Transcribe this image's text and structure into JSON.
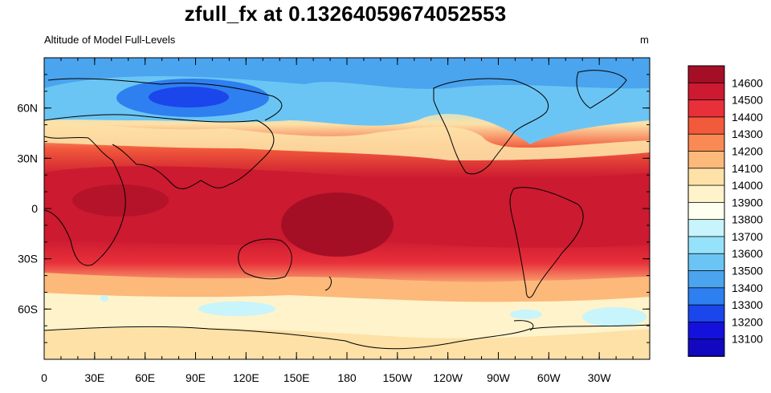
{
  "title": "zfull_fx at 0.13264059674052553",
  "subtitle": "Altitude of Model Full-Levels",
  "units": "m",
  "map": {
    "projection": "cylindrical equidistant",
    "lon_range": [
      0,
      360
    ],
    "lat_range": [
      -90,
      90
    ],
    "lon_ticks": [
      {
        "lon": 0,
        "label": "0"
      },
      {
        "lon": 30,
        "label": "30E"
      },
      {
        "lon": 60,
        "label": "60E"
      },
      {
        "lon": 90,
        "label": "90E"
      },
      {
        "lon": 120,
        "label": "120E"
      },
      {
        "lon": 150,
        "label": "150E"
      },
      {
        "lon": 180,
        "label": "180"
      },
      {
        "lon": 210,
        "label": "150W"
      },
      {
        "lon": 240,
        "label": "120W"
      },
      {
        "lon": 270,
        "label": "90W"
      },
      {
        "lon": 300,
        "label": "60W"
      },
      {
        "lon": 330,
        "label": "30W"
      }
    ],
    "lat_ticks": [
      {
        "lat": 60,
        "label": "60N"
      },
      {
        "lat": 30,
        "label": "30N"
      },
      {
        "lat": 0,
        "label": "0"
      },
      {
        "lat": -30,
        "label": "30S"
      },
      {
        "lat": -60,
        "label": "60S"
      }
    ]
  },
  "colorbar": {
    "levels": [
      "14600",
      "14500",
      "14400",
      "14300",
      "14200",
      "14100",
      "14000",
      "13900",
      "13800",
      "13700",
      "13600",
      "13500",
      "13400",
      "13300",
      "13200",
      "13100"
    ],
    "colors": [
      "#a50f26",
      "#cc1a30",
      "#e8303a",
      "#f25a3c",
      "#fa8a54",
      "#fcb97a",
      "#fde1a6",
      "#fef3cb",
      "#fffff0",
      "#c8f4fb",
      "#96e2fa",
      "#6bc5f4",
      "#4aa4ee",
      "#2e7ff0",
      "#1a46ec",
      "#1411dd",
      "#1208c0"
    ]
  }
}
